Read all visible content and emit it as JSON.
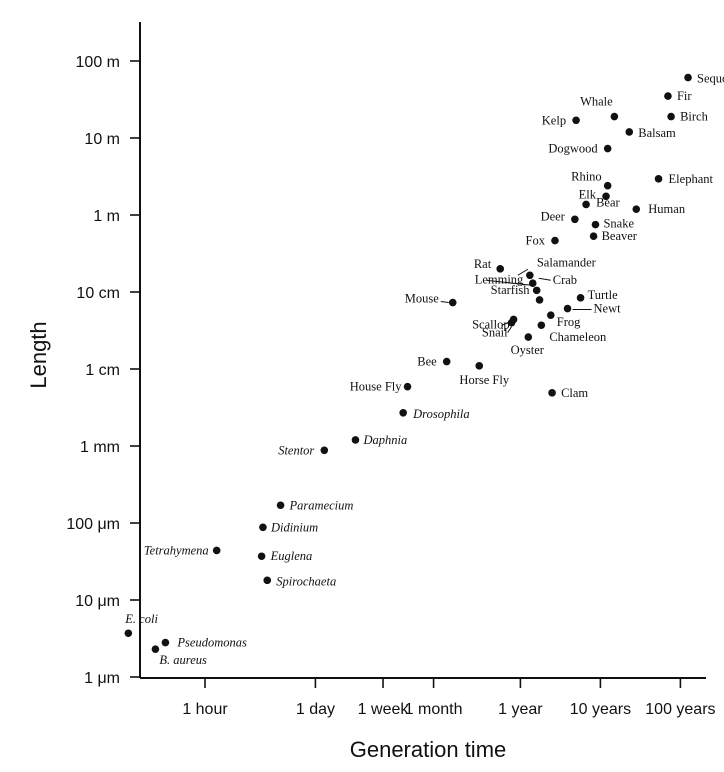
{
  "chart_data": {
    "type": "scatter",
    "title": "",
    "xlabel": "Generation time",
    "ylabel": "Length",
    "x_scale": "log",
    "y_scale": "log",
    "x_unit": "hours",
    "y_unit": "meters",
    "grid": false,
    "legend": "none",
    "x_ticks": [
      {
        "label": "1 hour",
        "value": 1
      },
      {
        "label": "1 day",
        "value": 24
      },
      {
        "label": "1 week",
        "value": 168
      },
      {
        "label": "1 month",
        "value": 720
      },
      {
        "label": "1 year",
        "value": 8760
      },
      {
        "label": "10 years",
        "value": 87600
      },
      {
        "label": "100 years",
        "value": 876000
      }
    ],
    "y_ticks": [
      {
        "label": "100 m",
        "value": 100
      },
      {
        "label": "10 m",
        "value": 10
      },
      {
        "label": "1 m",
        "value": 1
      },
      {
        "label": "10 cm",
        "value": 0.1
      },
      {
        "label": "1 cm",
        "value": 0.01
      },
      {
        "label": "1 mm",
        "value": 0.001
      },
      {
        "label": "100 μm",
        "value": 0.0001
      },
      {
        "label": "10 μm",
        "value": 1e-05
      },
      {
        "label": "1 μm",
        "value": 1e-06
      }
    ],
    "points": [
      {
        "name": "Sequoia",
        "x": 1092000,
        "y": 61,
        "italic": false
      },
      {
        "name": "Fir",
        "x": 612000,
        "y": 35,
        "italic": false
      },
      {
        "name": "Birch",
        "x": 670000,
        "y": 19,
        "italic": false
      },
      {
        "name": "Whale",
        "x": 131000,
        "y": 19,
        "italic": false
      },
      {
        "name": "Kelp",
        "x": 43500,
        "y": 17,
        "italic": false
      },
      {
        "name": "Balsam",
        "x": 201000,
        "y": 12,
        "italic": false
      },
      {
        "name": "Dogwood",
        "x": 108000,
        "y": 7.3,
        "italic": false
      },
      {
        "name": "Elephant",
        "x": 467000,
        "y": 2.95,
        "italic": false
      },
      {
        "name": "Rhino",
        "x": 108000,
        "y": 2.4,
        "italic": false
      },
      {
        "name": "Elk",
        "x": 103000,
        "y": 1.75,
        "italic": false
      },
      {
        "name": "Bear",
        "x": 58000,
        "y": 1.37,
        "italic": false
      },
      {
        "name": "Human",
        "x": 246000,
        "y": 1.19,
        "italic": false
      },
      {
        "name": "Deer",
        "x": 42000,
        "y": 0.88,
        "italic": false
      },
      {
        "name": "Snake",
        "x": 76000,
        "y": 0.75,
        "italic": false
      },
      {
        "name": "Beaver",
        "x": 72000,
        "y": 0.53,
        "italic": false
      },
      {
        "name": "Fox",
        "x": 23700,
        "y": 0.465,
        "italic": false
      },
      {
        "name": "Rat",
        "x": 4900,
        "y": 0.2,
        "italic": false
      },
      {
        "name": "Salamander",
        "x": 11500,
        "y": 0.165,
        "italic": false
      },
      {
        "name": "Crab",
        "x": 12500,
        "y": 0.13,
        "italic": false
      },
      {
        "name": "Lemming",
        "x": 14000,
        "y": 0.105,
        "italic": false
      },
      {
        "name": "Starfish",
        "x": 15200,
        "y": 0.079,
        "italic": false
      },
      {
        "name": "Mouse",
        "x": 1250,
        "y": 0.073,
        "italic": false
      },
      {
        "name": "Turtle",
        "x": 49500,
        "y": 0.084,
        "italic": false
      },
      {
        "name": "Newt",
        "x": 34000,
        "y": 0.061,
        "italic": false
      },
      {
        "name": "Scallop",
        "x": 7200,
        "y": 0.044,
        "italic": false
      },
      {
        "name": "Frog",
        "x": 21000,
        "y": 0.05,
        "italic": false
      },
      {
        "name": "Snail",
        "x": 6800,
        "y": 0.04,
        "italic": false
      },
      {
        "name": "Chameleon",
        "x": 16000,
        "y": 0.037,
        "italic": false
      },
      {
        "name": "Oyster",
        "x": 11000,
        "y": 0.026,
        "italic": false
      },
      {
        "name": "Bee",
        "x": 1050,
        "y": 0.0125,
        "italic": false
      },
      {
        "name": "Horse Fly",
        "x": 2680,
        "y": 0.011,
        "italic": false
      },
      {
        "name": "House Fly",
        "x": 340,
        "y": 0.0059,
        "italic": false
      },
      {
        "name": "Clam",
        "x": 21800,
        "y": 0.0049,
        "italic": false
      },
      {
        "name": "Drosophila",
        "x": 300,
        "y": 0.0027,
        "italic": true
      },
      {
        "name": "Daphnia",
        "x": 76,
        "y": 0.0012,
        "italic": true
      },
      {
        "name": "Stentor",
        "x": 31,
        "y": 0.00088,
        "italic": true
      },
      {
        "name": "Paramecium",
        "x": 8.8,
        "y": 0.00017,
        "italic": true
      },
      {
        "name": "Didinium",
        "x": 5.3,
        "y": 8.8e-05,
        "italic": true
      },
      {
        "name": "Tetrahymena",
        "x": 1.4,
        "y": 4.4e-05,
        "italic": true
      },
      {
        "name": "Euglena",
        "x": 5.1,
        "y": 3.7e-05,
        "italic": true
      },
      {
        "name": "Spirochaeta",
        "x": 6,
        "y": 1.8e-05,
        "italic": true
      },
      {
        "name": "E. coli",
        "x": 0.11,
        "y": 3.7e-06,
        "italic": true
      },
      {
        "name": "Pseudomonas",
        "x": 0.32,
        "y": 2.8e-06,
        "italic": true
      },
      {
        "name": "B. aureus",
        "x": 0.24,
        "y": 2.3e-06,
        "italic": true
      }
    ]
  }
}
